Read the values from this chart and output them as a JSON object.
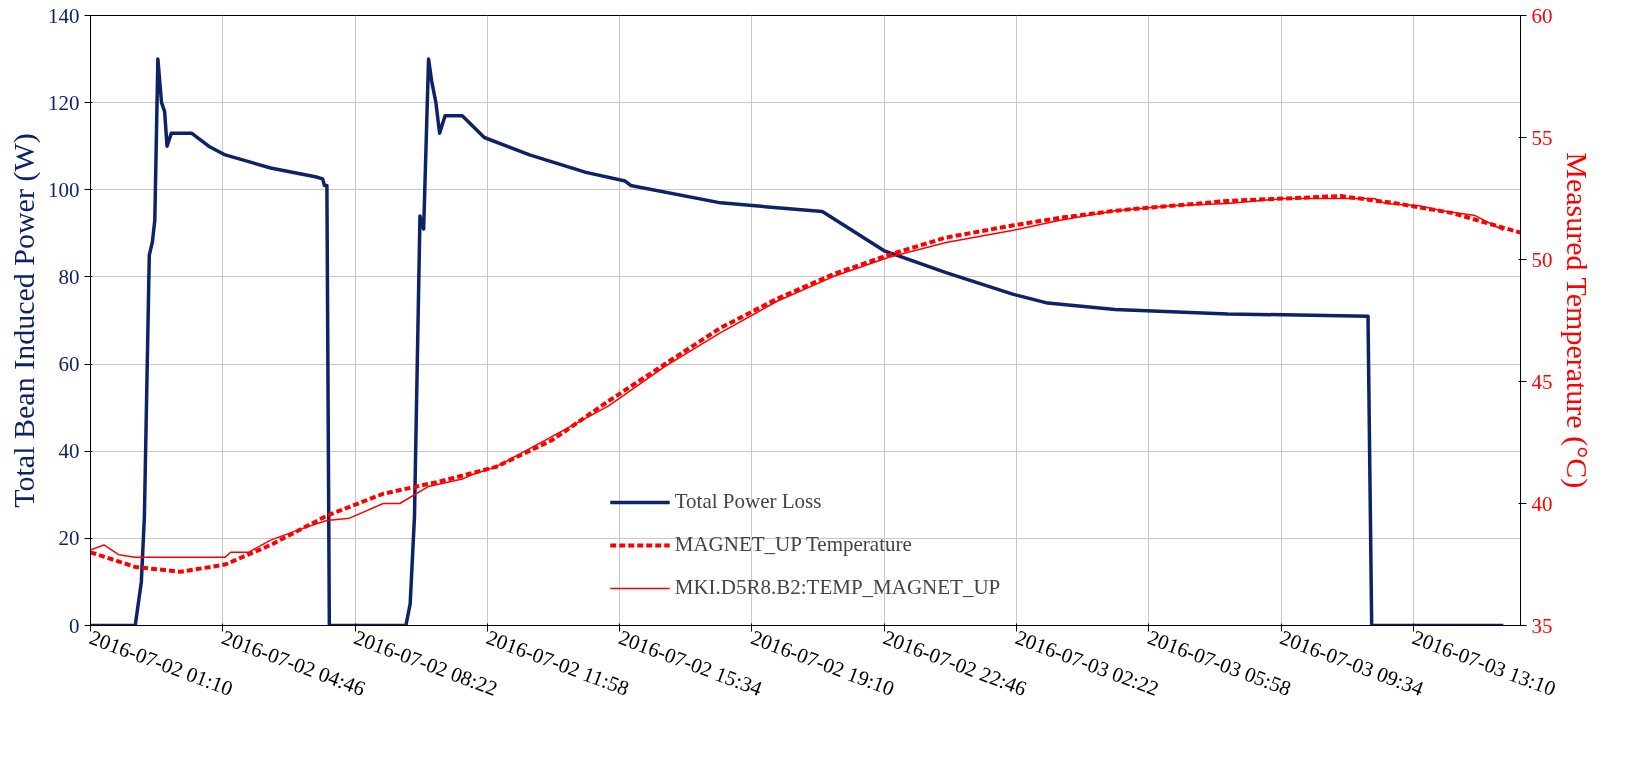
{
  "chart_data": {
    "type": "line",
    "ylabel": "Total Bean Induced Power (W)",
    "y2label": "Measured Temperature (°C)",
    "xlim": [
      "2016-07-02T01:10",
      "2016-07-03T16:05"
    ],
    "ylim": [
      0,
      140
    ],
    "y2lim": [
      35,
      60
    ],
    "xticks": [
      {
        "value": "2016-07-02T01:10",
        "label": "2016-07-02 01:10"
      },
      {
        "value": "2016-07-02T04:46",
        "label": "2016-07-02 04:46"
      },
      {
        "value": "2016-07-02T08:22",
        "label": "2016-07-02 08:22"
      },
      {
        "value": "2016-07-02T11:58",
        "label": "2016-07-02 11:58"
      },
      {
        "value": "2016-07-02T15:34",
        "label": "2016-07-02 15:34"
      },
      {
        "value": "2016-07-02T19:10",
        "label": "2016-07-02 19:10"
      },
      {
        "value": "2016-07-02T22:46",
        "label": "2016-07-02 22:46"
      },
      {
        "value": "2016-07-03T02:22",
        "label": "2016-07-03 02:22"
      },
      {
        "value": "2016-07-03T05:58",
        "label": "2016-07-03 05:58"
      },
      {
        "value": "2016-07-03T09:34",
        "label": "2016-07-03 09:34"
      },
      {
        "value": "2016-07-03T13:10",
        "label": "2016-07-03 13:10"
      }
    ],
    "yticks": [
      0,
      20,
      40,
      60,
      80,
      100,
      120,
      140
    ],
    "y2ticks": [
      35,
      40,
      45,
      50,
      55,
      60
    ],
    "grid": true,
    "legend": "bottom",
    "series": [
      {
        "name": "Total Power Loss",
        "color": "#0d2366",
        "line_style": "solid",
        "x": [
          "2016-07-02T01:10",
          "2016-07-02T02:23",
          "2016-07-02T02:33",
          "2016-07-02T02:38",
          "2016-07-02T02:46",
          "2016-07-02T02:51",
          "2016-07-02T02:55",
          "2016-07-02T03:00",
          "2016-07-02T03:06",
          "2016-07-02T03:11",
          "2016-07-02T03:15",
          "2016-07-02T03:22",
          "2016-07-02T03:55",
          "2016-07-02T04:23",
          "2016-07-02T04:50",
          "2016-07-02T06:04",
          "2016-07-02T07:17",
          "2016-07-02T07:29",
          "2016-07-02T07:32",
          "2016-07-02T07:36",
          "2016-07-02T07:40",
          "2016-07-02T09:45",
          "2016-07-02T09:52",
          "2016-07-02T09:59",
          "2016-07-02T10:08",
          "2016-07-02T10:14",
          "2016-07-02T10:22",
          "2016-07-02T10:27",
          "2016-07-02T10:34",
          "2016-07-02T10:40",
          "2016-07-02T10:49",
          "2016-07-02T11:17",
          "2016-07-02T11:53",
          "2016-07-02T13:07",
          "2016-07-02T14:39",
          "2016-07-02T15:43",
          "2016-07-02T15:52",
          "2016-07-02T18:19",
          "2016-07-02T21:05",
          "2016-07-02T22:46",
          "2016-07-03T00:27",
          "2016-07-03T02:17",
          "2016-07-03T03:13",
          "2016-07-03T05:03",
          "2016-07-03T08:07",
          "2016-07-03T11:56",
          "2016-07-03T12:02",
          "2016-07-03T15:37"
        ],
        "values": [
          0,
          0,
          10,
          25,
          85,
          88,
          93,
          130,
          120,
          118,
          110,
          113,
          113,
          110,
          108,
          105,
          103,
          102.5,
          101,
          101,
          0,
          0,
          5,
          25,
          94,
          91,
          130,
          125,
          120,
          113,
          117,
          117,
          112,
          108,
          104,
          102,
          101,
          97,
          95,
          86,
          81,
          76,
          74,
          72.5,
          71.5,
          71,
          0,
          0
        ]
      },
      {
        "name": "MAGNET_UP Temperature",
        "color": "#ff0000",
        "line_style": "dashed",
        "axis": "y2",
        "x": [
          "2016-07-02T01:10",
          "2016-07-02T02:23",
          "2016-07-02T03:37",
          "2016-07-02T04:50",
          "2016-07-02T06:04",
          "2016-07-02T07:36",
          "2016-07-02T09:08",
          "2016-07-02T10:40",
          "2016-07-02T12:12",
          "2016-07-02T13:44",
          "2016-07-02T15:16",
          "2016-07-02T16:47",
          "2016-07-02T18:19",
          "2016-07-02T19:52",
          "2016-07-02T21:23",
          "2016-07-02T22:55",
          "2016-07-03T00:27",
          "2016-07-03T02:17",
          "2016-07-03T03:31",
          "2016-07-03T05:03",
          "2016-07-03T06:35",
          "2016-07-03T08:07",
          "2016-07-03T09:39",
          "2016-07-03T11:11",
          "2016-07-03T12:43",
          "2016-07-03T14:14",
          "2016-07-03T16:05"
        ],
        "values": [
          38.0,
          37.4,
          37.2,
          37.5,
          38.3,
          39.5,
          40.4,
          40.9,
          41.5,
          42.6,
          44.2,
          45.7,
          47.2,
          48.4,
          49.4,
          50.2,
          50.9,
          51.4,
          51.7,
          52.0,
          52.2,
          52.4,
          52.5,
          52.6,
          52.3,
          51.9,
          51.1
        ]
      },
      {
        "name": "MKI.D5R8.B2:TEMP_MAGNET_UP",
        "color": "#ff0000",
        "line_style": "solid",
        "axis": "y2",
        "x": [
          "2016-07-02T01:10",
          "2016-07-02T01:32",
          "2016-07-02T01:56",
          "2016-07-02T02:23",
          "2016-07-02T04:50",
          "2016-07-02T04:59",
          "2016-07-02T05:28",
          "2016-07-02T06:04",
          "2016-07-02T06:59",
          "2016-07-02T07:36",
          "2016-07-02T08:13",
          "2016-07-02T09:08",
          "2016-07-02T09:35",
          "2016-07-02T10:22",
          "2016-07-02T11:17",
          "2016-07-02T11:35",
          "2016-07-02T12:12",
          "2016-07-02T12:49",
          "2016-07-02T14:02",
          "2016-07-02T15:16",
          "2016-07-02T16:47",
          "2016-07-02T18:19",
          "2016-07-02T19:52",
          "2016-07-02T21:23",
          "2016-07-02T22:55",
          "2016-07-03T00:27",
          "2016-07-03T02:17",
          "2016-07-03T03:31",
          "2016-07-03T05:03",
          "2016-07-03T06:35",
          "2016-07-03T08:07",
          "2016-07-03T09:39",
          "2016-07-03T11:11",
          "2016-07-03T12:06",
          "2016-07-03T12:24",
          "2016-07-03T13:19",
          "2016-07-03T13:56",
          "2016-07-03T14:51",
          "2016-07-03T15:37"
        ],
        "values": [
          38.1,
          38.3,
          37.9,
          37.8,
          37.8,
          38.0,
          38.0,
          38.5,
          39.0,
          39.3,
          39.4,
          40.0,
          40.0,
          40.7,
          41.0,
          41.2,
          41.5,
          42.0,
          43.0,
          44.0,
          45.6,
          47.0,
          48.3,
          49.3,
          50.1,
          50.7,
          51.2,
          51.6,
          52.0,
          52.2,
          52.3,
          52.5,
          52.5,
          52.5,
          52.3,
          52.2,
          52.0,
          51.8,
          51.2
        ]
      }
    ]
  }
}
